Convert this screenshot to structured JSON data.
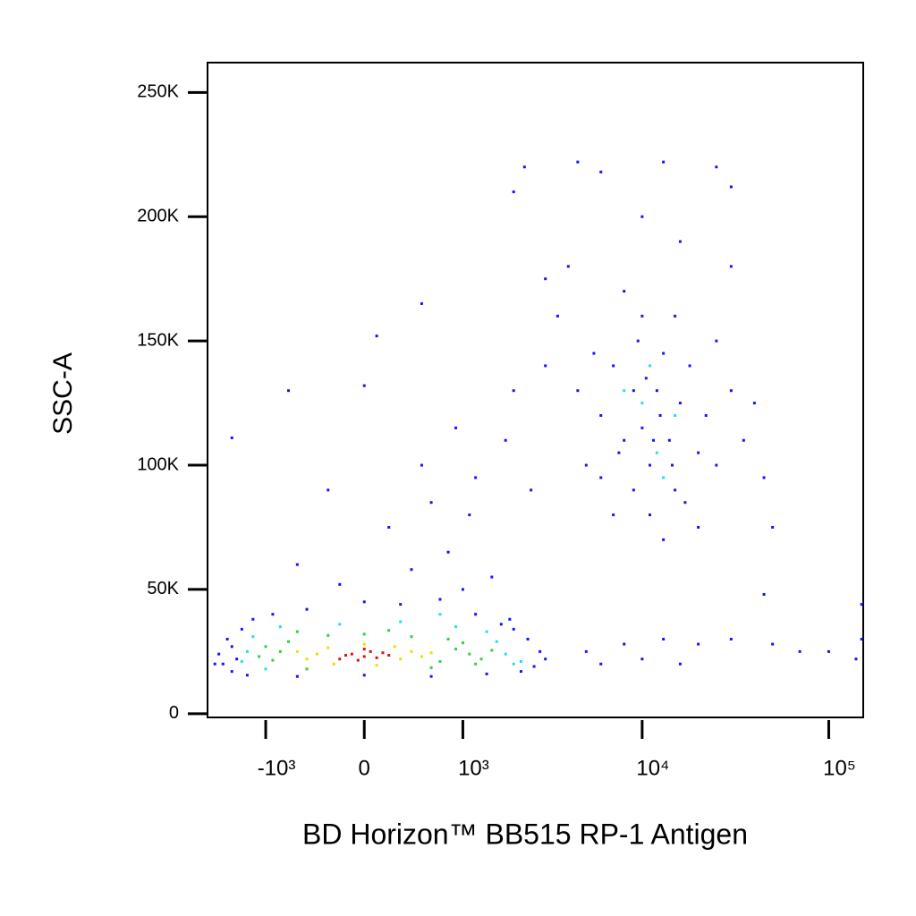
{
  "chart_data": {
    "type": "scatter",
    "x_label": "BD Horizon™ BB515  RP-1 Antigen",
    "y_label": "SSC-A",
    "xscale": "biexponential",
    "xlim": [
      -2200,
      153000
    ],
    "xticks": [
      {
        "value": -1000,
        "label": "-10³"
      },
      0,
      {
        "value": 1000,
        "label": "10³"
      },
      {
        "value": 10000,
        "label": "10⁴"
      },
      {
        "value": 100000,
        "label": "10⁵"
      }
    ],
    "ylim": [
      -1500,
      262000
    ],
    "yticks": [
      0,
      {
        "value": 50000,
        "label": "50K"
      },
      {
        "value": 100000,
        "label": "100K"
      },
      {
        "value": 150000,
        "label": "150K"
      },
      {
        "value": 200000,
        "label": "200K"
      },
      {
        "value": 250000,
        "label": "250K"
      }
    ],
    "series": [
      {
        "color": "#1414ff",
        "x": [
          -1600,
          -1500,
          -1700,
          -1400,
          -1800,
          -1200,
          -900,
          -500,
          0,
          300,
          700,
          1200,
          1700,
          2400,
          2800,
          2600,
          3000,
          2000,
          -1600,
          -1300,
          -600,
          0,
          600,
          1400,
          2200,
          1900,
          1000,
          -200,
          400,
          800,
          1500,
          -600,
          200,
          600,
          1100,
          -300,
          500,
          1200,
          1800,
          2500,
          900,
          -700,
          0,
          100,
          500,
          2000,
          3000,
          3500,
          4000,
          3000,
          2000,
          2300,
          -1600,
          -2000,
          -1900,
          5000,
          6000,
          7000,
          8000,
          9000,
          10000,
          11000,
          12000,
          13000,
          14000,
          15000,
          16000,
          18000,
          20000,
          22000,
          25000,
          30000,
          35000,
          40000,
          9000,
          11000,
          13000,
          10000,
          8000,
          15000,
          6000,
          7000,
          4500,
          45000,
          50000,
          20000,
          9500,
          12500,
          11500,
          10500,
          14500,
          17000,
          7500,
          5500,
          25000,
          4500,
          6000,
          13000,
          25000,
          30000,
          10000,
          16000,
          30000,
          8000,
          10000,
          13000,
          20000,
          30000,
          50000,
          70000,
          100000,
          140000,
          150000,
          6000,
          45000,
          150000,
          5000,
          16000
        ],
        "y": [
          27000,
          22000,
          30000,
          34000,
          20000,
          38000,
          40000,
          42000,
          45000,
          44000,
          46000,
          40000,
          36000,
          30000,
          25000,
          19000,
          22000,
          34000,
          17000,
          15500,
          15000,
          15500,
          15000,
          16000,
          17000,
          38000,
          50000,
          52000,
          58000,
          65000,
          55000,
          60000,
          75000,
          85000,
          80000,
          90000,
          100000,
          95000,
          110000,
          90000,
          115000,
          130000,
          132000,
          152000,
          165000,
          130000,
          140000,
          160000,
          180000,
          175000,
          210000,
          220000,
          111000,
          20000,
          24000,
          100000,
          120000,
          140000,
          110000,
          130000,
          115000,
          100000,
          130000,
          145000,
          110000,
          90000,
          125000,
          140000,
          105000,
          120000,
          100000,
          130000,
          110000,
          125000,
          90000,
          80000,
          70000,
          160000,
          170000,
          160000,
          95000,
          80000,
          130000,
          95000,
          75000,
          75000,
          150000,
          120000,
          110000,
          135000,
          100000,
          85000,
          105000,
          145000,
          150000,
          222000,
          218000,
          222000,
          220000,
          212000,
          200000,
          190000,
          180000,
          28000,
          22000,
          30000,
          28000,
          30000,
          28000,
          25000,
          25000,
          22000,
          30000,
          20000,
          48000,
          44000,
          25000,
          20000
        ]
      },
      {
        "color": "#20e0e8",
        "x": [
          -1300,
          1800,
          -1200,
          1600,
          -1400,
          2200,
          300,
          -200,
          900,
          15000,
          10000,
          12000,
          2000,
          700,
          -800,
          13000,
          8000,
          1400,
          -1000,
          11000
        ],
        "y": [
          25000,
          24000,
          31000,
          29000,
          21000,
          21000,
          37000,
          36000,
          35000,
          120000,
          125000,
          105000,
          20000,
          40000,
          35000,
          95000,
          130000,
          33000,
          18000,
          140000
        ]
      },
      {
        "color": "#30d040",
        "x": [
          -800,
          700,
          -700,
          900,
          -900,
          800,
          1100,
          -1000,
          0,
          -300,
          400,
          1300,
          -1100,
          1000,
          -500,
          600,
          200,
          -600,
          1500,
          1200
        ],
        "y": [
          25000,
          21000,
          29000,
          26000,
          21500,
          30000,
          24000,
          27000,
          32000,
          31500,
          31000,
          22000,
          23000,
          28500,
          18000,
          18500,
          33500,
          33000,
          25500,
          20000
        ]
      },
      {
        "color": "#e8e000",
        "x": [
          -400,
          300,
          -300,
          400,
          -500,
          250,
          500,
          -250,
          0,
          100,
          600,
          -600
        ],
        "y": [
          24000,
          22000,
          26500,
          25000,
          22000,
          27000,
          23000,
          20000,
          28000,
          19500,
          24500,
          25000
        ]
      },
      {
        "color": "#e01010",
        "x": [
          -100,
          0,
          100,
          -200,
          50,
          200,
          -50,
          150,
          0,
          -150
        ],
        "y": [
          24000,
          23000,
          22500,
          22000,
          25000,
          23500,
          21500,
          24500,
          26000,
          23500
        ]
      }
    ]
  }
}
